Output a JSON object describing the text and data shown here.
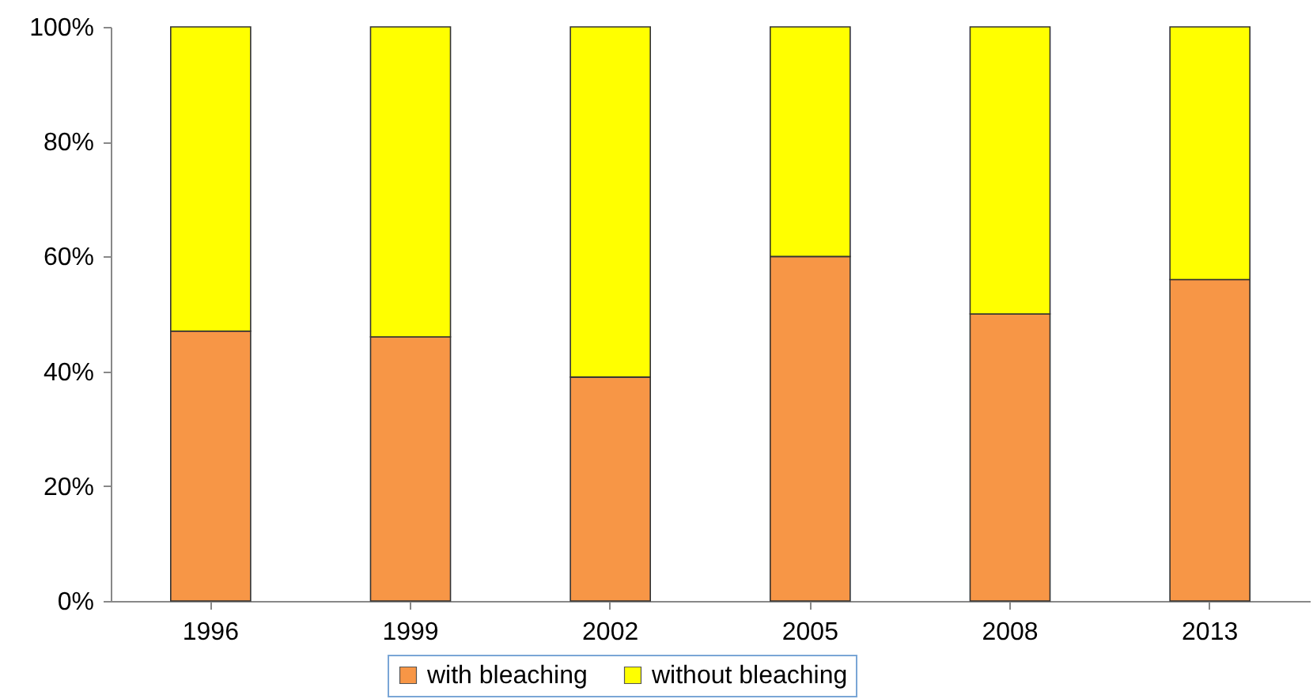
{
  "chart_data": {
    "type": "bar",
    "stacked": true,
    "categories": [
      "1996",
      "1999",
      "2002",
      "2005",
      "2008",
      "2013"
    ],
    "series": [
      {
        "name": "with bleaching",
        "color": "#f79646",
        "values": [
          47,
          46,
          39,
          60,
          50,
          56
        ]
      },
      {
        "name": "without bleaching",
        "color": "#ffff00",
        "values": [
          53,
          54,
          61,
          40,
          50,
          44
        ]
      }
    ],
    "ylim": [
      0,
      100
    ],
    "yticks": [
      {
        "value": 0,
        "label": "0%"
      },
      {
        "value": 20,
        "label": "20%"
      },
      {
        "value": 40,
        "label": "40%"
      },
      {
        "value": 60,
        "label": "60%"
      },
      {
        "value": 80,
        "label": "80%"
      },
      {
        "value": 100,
        "label": "100%"
      }
    ],
    "legend": "bottom",
    "grid": false
  }
}
